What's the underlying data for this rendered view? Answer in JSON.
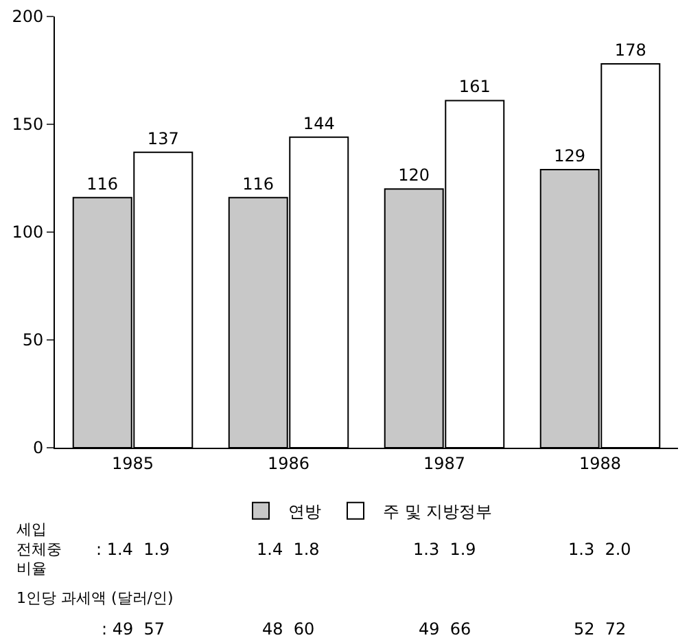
{
  "chart_data": {
    "type": "bar",
    "categories": [
      "1985",
      "1986",
      "1987",
      "1988"
    ],
    "series": [
      {
        "name": "연방",
        "color": "#c8c8c8",
        "values": [
          116,
          116,
          120,
          129
        ]
      },
      {
        "name": "주 및 지방정부",
        "color": "#ffffff",
        "values": [
          137,
          144,
          161,
          178
        ]
      }
    ],
    "ylim": [
      0,
      200
    ],
    "yticks": [
      0,
      50,
      100,
      150,
      200
    ],
    "grid": false,
    "legend": "bottom",
    "data_labels": true,
    "annotations": [
      "세입 전체중 비율",
      ": 1.4  1.9",
      "1.4  1.8",
      "1.3  1.9",
      "1.3  2.0",
      "1인당 과세액 (달러/인)",
      ": 49  57",
      "48  60",
      "49  66",
      "52  72"
    ]
  }
}
